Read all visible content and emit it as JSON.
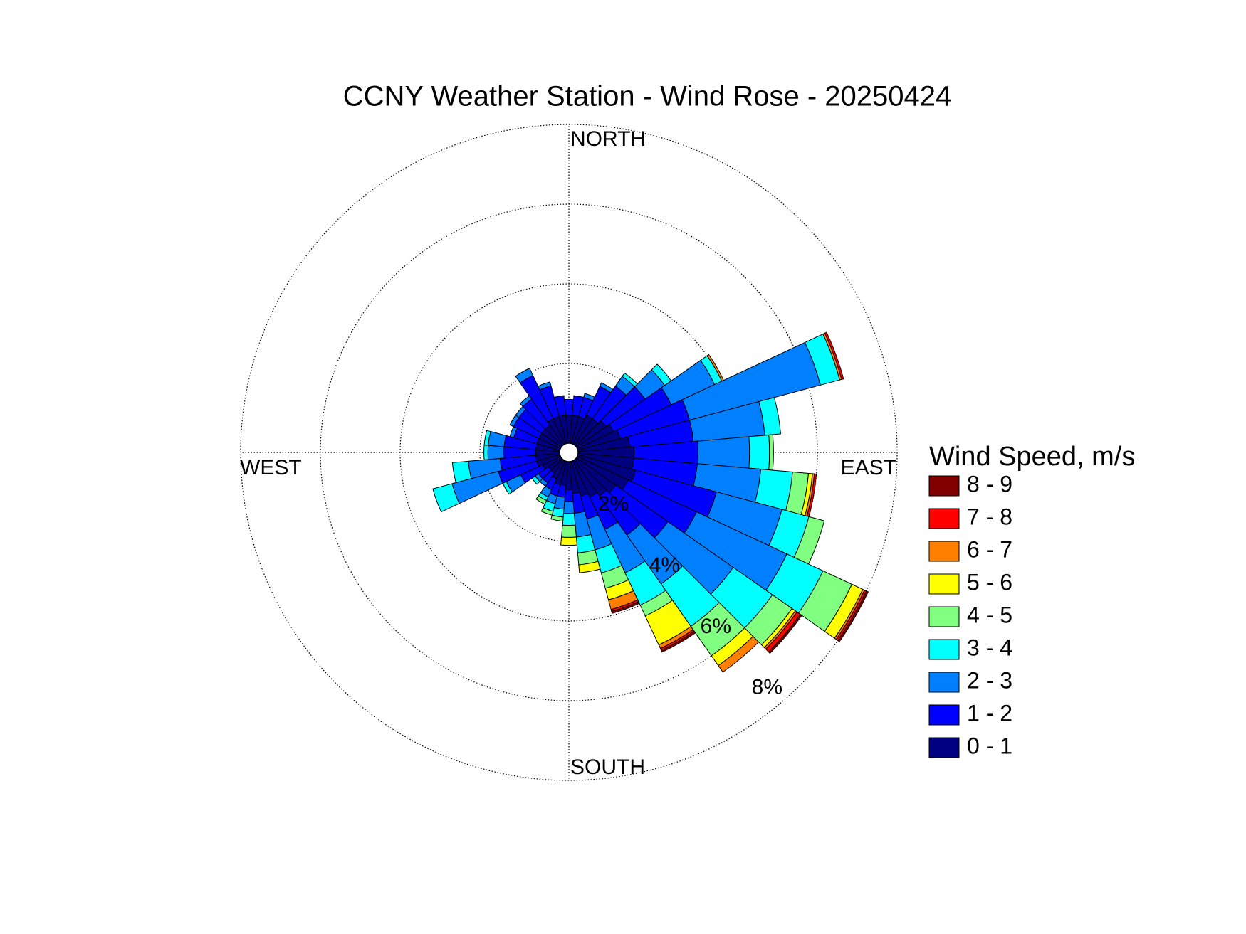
{
  "chart_data": {
    "type": "windrose",
    "title": "CCNY Weather Station - Wind Rose - 20250424",
    "legend_title": "Wind Speed, m/s",
    "direction_labels": [
      "NORTH",
      "EAST",
      "SOUTH",
      "WEST"
    ],
    "x": [
      0,
      10,
      20,
      30,
      40,
      50,
      60,
      70,
      80,
      90,
      100,
      110,
      120,
      130,
      140,
      150,
      160,
      170,
      180,
      190,
      200,
      210,
      220,
      230,
      240,
      250,
      260,
      270,
      280,
      290,
      300,
      310,
      320,
      330,
      340,
      350
    ],
    "rlim": [
      0,
      8
    ],
    "rticks": [
      {
        "value": 2,
        "label": "2%"
      },
      {
        "value": 4,
        "label": "4%"
      },
      {
        "value": 6,
        "label": "6%"
      },
      {
        "value": 8,
        "label": "8%"
      }
    ],
    "grid": true,
    "series": [
      {
        "name": "0 - 1",
        "color": "#000080",
        "values": [
          0.7,
          0.7,
          0.7,
          0.8,
          0.8,
          0.9,
          1.0,
          1.1,
          1.3,
          1.4,
          1.4,
          1.5,
          1.4,
          1.2,
          1.1,
          1.0,
          0.9,
          0.8,
          0.7,
          0.6,
          0.6,
          0.5,
          0.4,
          0.4,
          0.5,
          0.6,
          0.6,
          0.6,
          0.6,
          0.6,
          0.6,
          0.6,
          0.6,
          0.7,
          0.7,
          0.7
        ]
      },
      {
        "name": "1 - 2",
        "color": "#0000ff",
        "values": [
          0.4,
          0.5,
          0.5,
          0.8,
          1.0,
          1.2,
          1.6,
          1.8,
          1.6,
          1.6,
          1.6,
          2.1,
          1.9,
          1.6,
          1.2,
          0.9,
          0.6,
          0.5,
          0.3,
          0.3,
          0.3,
          0.3,
          0.3,
          0.3,
          0.6,
          1.0,
          0.9,
          0.8,
          0.8,
          0.6,
          0.7,
          0.7,
          0.8,
          1.2,
          0.8,
          0.5
        ]
      },
      {
        "name": "2 - 3",
        "color": "#0080ff",
        "values": [
          0,
          0,
          0.1,
          0.1,
          0.3,
          0.6,
          1.2,
          3.4,
          1.8,
          1.3,
          1.6,
          1.7,
          2.5,
          2.0,
          1.5,
          1.2,
          0.8,
          0.6,
          0.3,
          0.3,
          0.2,
          0.2,
          0.1,
          0.1,
          0.4,
          1.2,
          0.8,
          0.4,
          0.4,
          0.1,
          0.1,
          0.1,
          0.1,
          0.2,
          0.1,
          0
        ]
      },
      {
        "name": "3 - 4",
        "color": "#00ffff",
        "values": [
          0,
          0,
          0,
          0,
          0.1,
          0.2,
          0.2,
          0.5,
          0.4,
          0.5,
          0.8,
          0.7,
          1.0,
          1.2,
          1.3,
          0.9,
          0.6,
          0.4,
          0.3,
          0.2,
          0.2,
          0.1,
          0,
          0.1,
          0.1,
          0.5,
          0.4,
          0.1,
          0.1,
          0,
          0,
          0,
          0,
          0,
          0,
          0
        ]
      },
      {
        "name": "4 - 5",
        "color": "#80ff80",
        "values": [
          0,
          0,
          0,
          0,
          0,
          0,
          0,
          0,
          0,
          0.1,
          0.4,
          0.4,
          0.8,
          0.6,
          0.9,
          0.3,
          0.4,
          0.3,
          0.3,
          0.1,
          0.1,
          0.1,
          0,
          0,
          0,
          0,
          0,
          0,
          0,
          0,
          0,
          0,
          0,
          0,
          0,
          0
        ]
      },
      {
        "name": "5 - 6",
        "color": "#ffff00",
        "values": [
          0,
          0,
          0,
          0,
          0,
          0,
          0,
          0,
          0,
          0,
          0.1,
          0,
          0.3,
          0.1,
          0.3,
          0.8,
          0.3,
          0.2,
          0.2,
          0,
          0,
          0,
          0,
          0,
          0,
          0,
          0,
          0,
          0,
          0,
          0,
          0,
          0,
          0,
          0,
          0
        ]
      },
      {
        "name": "6 - 7",
        "color": "#ff8000",
        "values": [
          0,
          0,
          0,
          0,
          0,
          0,
          0.05,
          0.05,
          0,
          0,
          0.05,
          0,
          0.05,
          0.05,
          0.2,
          0.1,
          0.25,
          0,
          0,
          0,
          0,
          0,
          0,
          0,
          0,
          0,
          0,
          0,
          0,
          0,
          0,
          0,
          0,
          0,
          0,
          0
        ]
      },
      {
        "name": "7 - 8",
        "color": "#ff0000",
        "values": [
          0,
          0,
          0,
          0,
          0,
          0,
          0,
          0.05,
          0,
          0,
          0.05,
          0,
          0.05,
          0.1,
          0,
          0.05,
          0.05,
          0,
          0,
          0,
          0,
          0,
          0,
          0,
          0,
          0,
          0,
          0,
          0,
          0,
          0,
          0,
          0,
          0,
          0,
          0
        ]
      },
      {
        "name": "8 - 9",
        "color": "#800000",
        "values": [
          0,
          0,
          0,
          0,
          0,
          0,
          0,
          0,
          0,
          0,
          0,
          0,
          0.05,
          0.05,
          0,
          0.05,
          0.05,
          0,
          0,
          0,
          0,
          0,
          0,
          0,
          0,
          0,
          0,
          0,
          0,
          0,
          0,
          0,
          0,
          0,
          0,
          0
        ]
      }
    ]
  }
}
